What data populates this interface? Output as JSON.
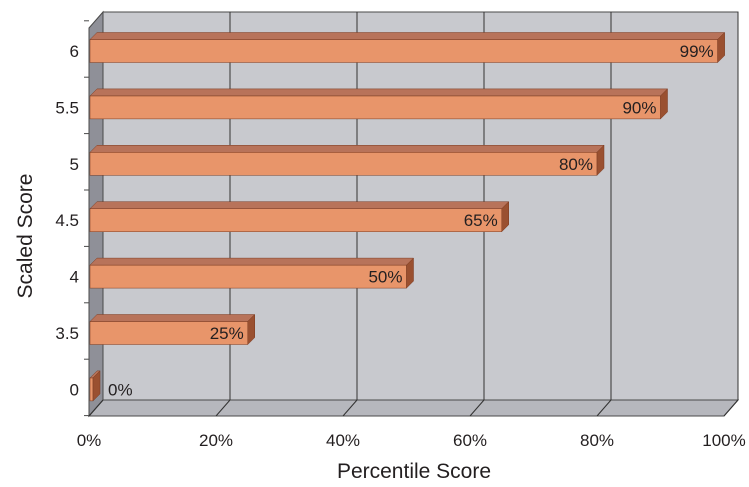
{
  "chart_data": {
    "type": "bar",
    "orientation": "horizontal",
    "style": "3d",
    "categories": [
      "6",
      "5.5",
      "5",
      "4.5",
      "4",
      "3.5",
      "0"
    ],
    "values": [
      99,
      90,
      80,
      65,
      50,
      25,
      0
    ],
    "data_labels": [
      "99%",
      "90%",
      "80%",
      "65%",
      "50%",
      "25%",
      "0%"
    ],
    "xlabel": "Percentile Score",
    "ylabel": "Scaled Score",
    "xlim": [
      0,
      100
    ],
    "x_ticks": [
      0,
      20,
      40,
      60,
      80,
      100
    ],
    "x_tick_labels": [
      "0%",
      "20%",
      "40%",
      "60%",
      "80%",
      "100%"
    ],
    "grid": "vertical",
    "legend": "none",
    "colors": {
      "bar_front": "#e8956a",
      "bar_top": "#b8735a",
      "bar_side": "#9a5030",
      "plot_back": "#c8c9ce",
      "plot_left_wall": "#8f9098",
      "plot_floor": "#b6b7bd",
      "gridline": "#333333"
    }
  }
}
